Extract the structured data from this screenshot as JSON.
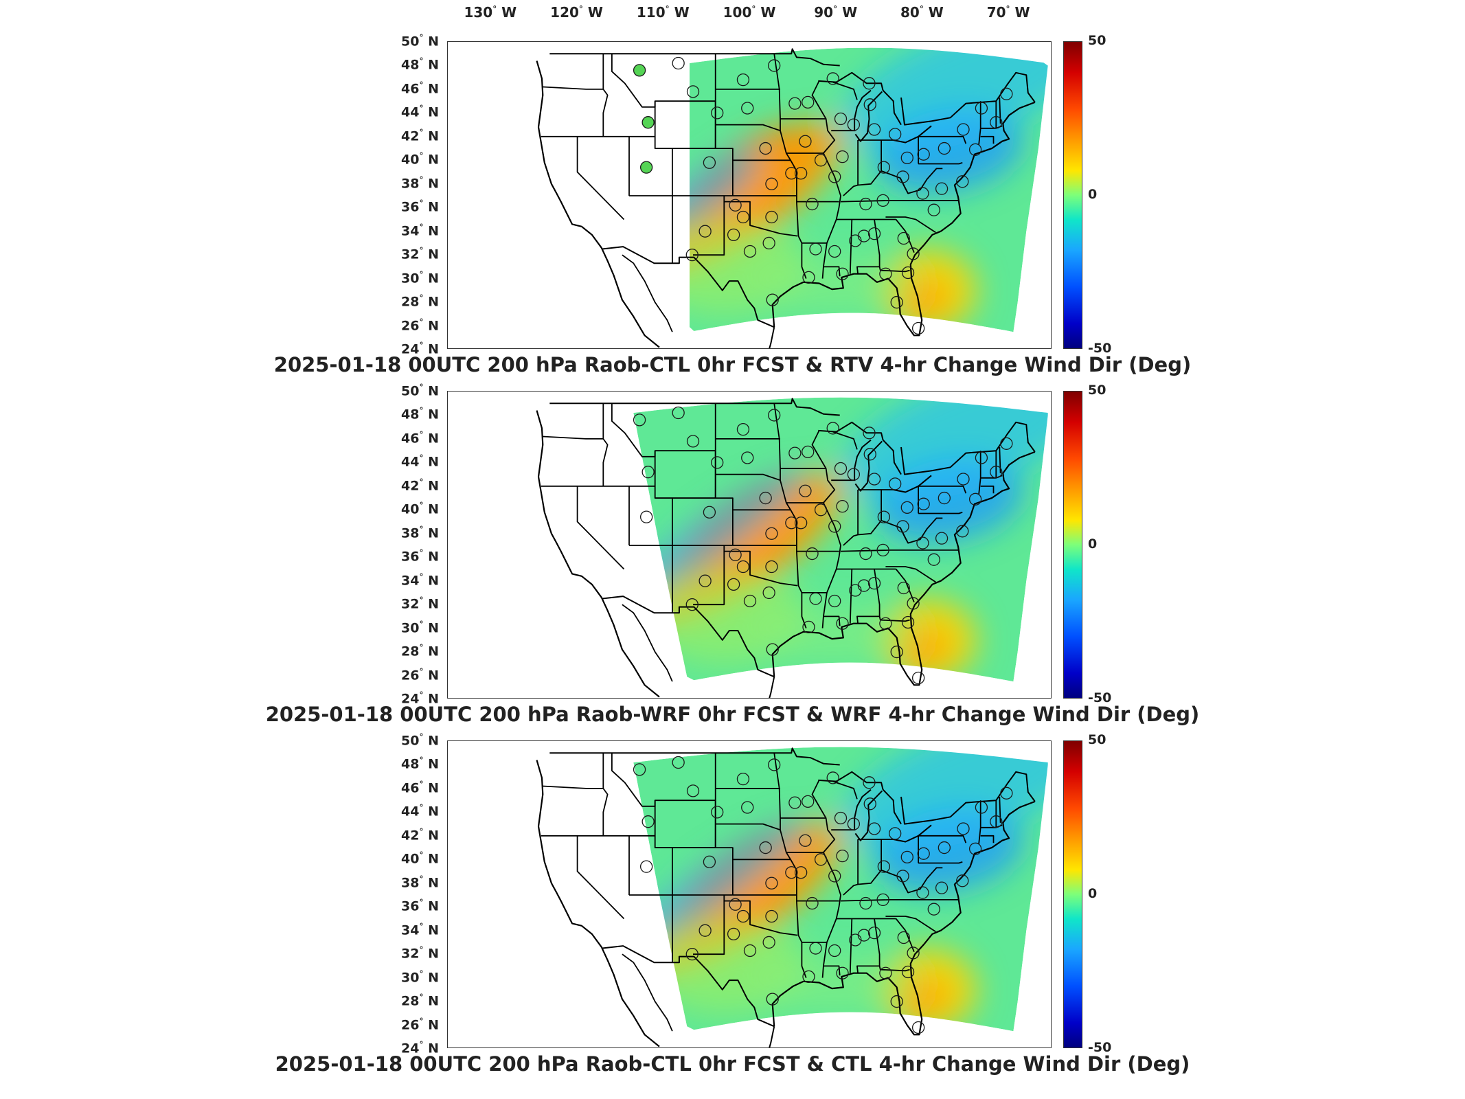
{
  "longitude_labels": [
    "130",
    "120",
    "110",
    "100",
    "90",
    "80",
    "70"
  ],
  "longitude_suffix": "W",
  "latitude_labels": [
    "50",
    "48",
    "46",
    "44",
    "42",
    "40",
    "38",
    "36",
    "34",
    "32",
    "30",
    "28",
    "26",
    "24"
  ],
  "latitude_suffix": "N",
  "degree_symbol": "°",
  "colorbar": {
    "max": "50",
    "mid": "0",
    "min": "-50"
  },
  "panels": [
    {
      "title": "2025-01-18 00UTC 200 hPa Raob-CTL 0hr FCST & RTV 4-hr Change Wind Dir (Deg)"
    },
    {
      "title": "2025-01-18 00UTC 200 hPa Raob-WRF 0hr FCST & WRF 4-hr Change Wind Dir (Deg)"
    },
    {
      "title": "2025-01-18 00UTC 200 hPa Raob-CTL 0hr FCST & CTL 4-hr Change Wind Dir (Deg)"
    }
  ],
  "colors": {
    "station_fill_outside": "#55d455",
    "border": "#000000"
  }
}
